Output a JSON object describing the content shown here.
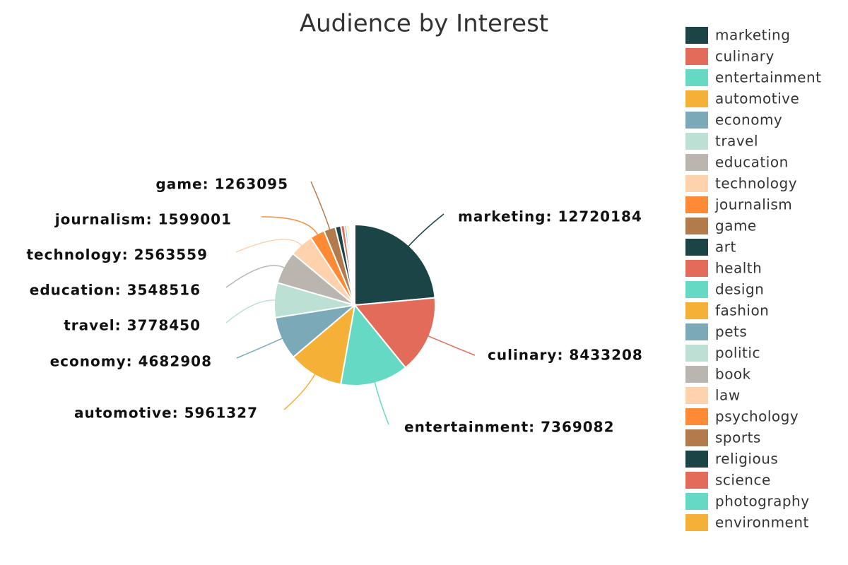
{
  "chart_data": {
    "type": "pie",
    "title": "Audience by Interest",
    "categories": [
      "marketing",
      "culinary",
      "entertainment",
      "automotive",
      "economy",
      "travel",
      "education",
      "technology",
      "journalism",
      "game",
      "art",
      "health",
      "design",
      "fashion",
      "pets",
      "politic",
      "book",
      "law",
      "psychology",
      "sports",
      "religious",
      "science",
      "photography",
      "environment"
    ],
    "values": [
      12720184,
      8433208,
      7369082,
      5961327,
      4682908,
      3778450,
      3548516,
      2563559,
      1599001,
      1263095,
      600000,
      400000,
      250000,
      200000,
      150000,
      120000,
      100000,
      80000,
      60000,
      50000,
      40000,
      30000,
      20000,
      10000
    ],
    "value_labels": [
      "marketing: 12720184",
      "culinary: 8433208",
      "entertainment: 7369082",
      "automotive: 5961327",
      "economy: 4682908",
      "travel: 3778450",
      "education: 3548516",
      "technology: 2563559",
      "journalism: 1599001",
      "game: 1263095",
      null,
      null,
      null,
      null,
      null,
      null,
      null,
      null,
      null,
      null,
      null,
      null,
      null,
      null
    ],
    "colors": [
      "#1b4447",
      "#e36b5a",
      "#66d9c4",
      "#f4b037",
      "#7ba9b8",
      "#bde0d4",
      "#bab5af",
      "#fdd2ad",
      "#fd8a34",
      "#b37a4b",
      "#1b4447",
      "#e36b5a",
      "#66d9c4",
      "#f4b037",
      "#7ba9b8",
      "#bde0d4",
      "#bab5af",
      "#fdd2ad",
      "#fd8a34",
      "#b37a4b",
      "#1b4447",
      "#e36b5a",
      "#66d9c4",
      "#f4b037"
    ],
    "legend": "right"
  }
}
